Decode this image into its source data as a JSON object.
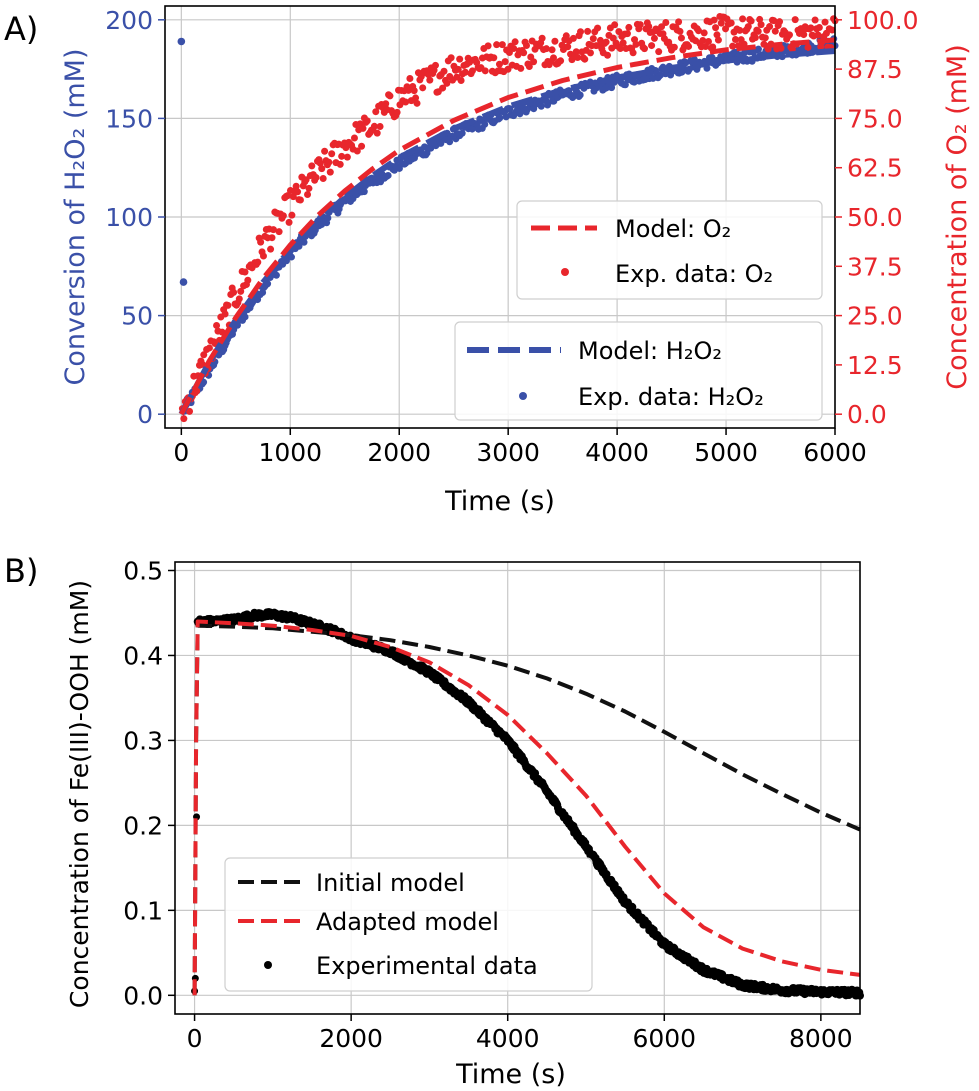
{
  "colors": {
    "h2o2": "#3a50a8",
    "o2": "#e8262c",
    "initial": "#111111",
    "adapted": "#e8262c",
    "experimental": "#000000",
    "grid": "#c8c8c8"
  },
  "panels": {
    "a": {
      "letter": "A)"
    },
    "b": {
      "letter": "B)"
    }
  },
  "chart_data": [
    {
      "type": "scatter",
      "xlabel": "Time (s)",
      "ylabel": "Conversion of H₂O₂ (mM)",
      "ylabel_right": "Concentration of O₂ (mM)",
      "xlim": [
        -150,
        6000
      ],
      "ylim": [
        -7,
        207
      ],
      "ylim_right": [
        -3.5,
        103.5
      ],
      "x_ticks": [
        0,
        1000,
        2000,
        3000,
        4000,
        5000,
        6000
      ],
      "x_tick_labels": [
        "0",
        "1000",
        "2000",
        "3000",
        "4000",
        "5000",
        "6000"
      ],
      "y_ticks": [
        0,
        50,
        100,
        150,
        200
      ],
      "y_tick_labels": [
        "0",
        "50",
        "100",
        "150",
        "200"
      ],
      "y_right_ticks": [
        0,
        12.5,
        25,
        37.5,
        50,
        62.5,
        75,
        87.5,
        100
      ],
      "y_right_tick_labels": [
        "0.0",
        "12.5",
        "25.0",
        "37.5",
        "50.0",
        "62.5",
        "75.0",
        "87.5",
        "100.0"
      ],
      "grid": true,
      "legends": [
        {
          "placement": "center-right",
          "entries": [
            "Model: O₂",
            "Exp. data: O₂"
          ]
        },
        {
          "placement": "lower-right",
          "entries": [
            "Model: H₂O₂",
            "Exp. data: H₂O₂"
          ]
        }
      ],
      "series": [
        {
          "name": "Model: O₂",
          "kind": "line",
          "axis": "right",
          "x": [
            0,
            250,
            500,
            750,
            1000,
            1250,
            1500,
            1750,
            2000,
            2500,
            3000,
            3500,
            4000,
            4500,
            5000,
            5500,
            6000
          ],
          "y": [
            0,
            13.2,
            24.5,
            34.4,
            42.9,
            50.3,
            56.6,
            62.1,
            66.9,
            74.5,
            80.3,
            84.6,
            87.9,
            90.4,
            92.4,
            93.8,
            94.9
          ]
        },
        {
          "name": "Exp. data: O₂",
          "kind": "scatter",
          "axis": "right",
          "x": [
            0,
            250,
            500,
            750,
            1000,
            1250,
            1500,
            1750,
            2000,
            2500,
            3000,
            3500,
            4000,
            4500,
            5000,
            5500,
            6000
          ],
          "y": [
            0,
            15,
            30,
            43,
            53,
            61,
            68,
            73,
            80,
            88,
            91,
            93,
            95,
            96,
            97,
            96,
            97
          ]
        },
        {
          "name": "Model: H₂O₂",
          "kind": "line",
          "axis": "left",
          "x": [
            0,
            250,
            500,
            750,
            1000,
            1250,
            1500,
            1750,
            2000,
            2500,
            3000,
            3500,
            4000,
            4500,
            5000,
            5500,
            6000
          ],
          "y": [
            0,
            25.7,
            47.7,
            66.8,
            83.4,
            97.6,
            110.0,
            120.7,
            130.0,
            144.8,
            156.0,
            164.4,
            170.7,
            175.6,
            179.3,
            182.1,
            184.2
          ]
        },
        {
          "name": "Exp. data: H₂O₂",
          "kind": "scatter",
          "axis": "left",
          "x": [
            0,
            20,
            250,
            500,
            750,
            1000,
            1250,
            1500,
            1750,
            2000,
            2500,
            3000,
            3500,
            4000,
            4500,
            5000,
            5500,
            6000
          ],
          "y": [
            189,
            67,
            22,
            45,
            65,
            82,
            96,
            108,
            118,
            127,
            142,
            153,
            162,
            169,
            175,
            180,
            184,
            188
          ]
        }
      ]
    },
    {
      "type": "line",
      "xlabel": "Time (s)",
      "ylabel": "Concentration of Fe(III)-OOH (mM)",
      "xlim": [
        -250,
        8500
      ],
      "ylim": [
        -0.022,
        0.51
      ],
      "x_ticks": [
        0,
        2000,
        4000,
        6000,
        8000
      ],
      "x_tick_labels": [
        "0",
        "2000",
        "4000",
        "6000",
        "8000"
      ],
      "y_ticks": [
        0,
        0.1,
        0.2,
        0.3,
        0.4,
        0.5
      ],
      "y_tick_labels": [
        "0.0",
        "0.1",
        "0.2",
        "0.3",
        "0.4",
        "0.5"
      ],
      "grid": true,
      "legend": {
        "placement": "lower-left",
        "entries": [
          "Initial model",
          "Adapted model",
          "Experimental data"
        ]
      },
      "series": [
        {
          "name": "Initial model",
          "kind": "line",
          "x": [
            0,
            20,
            40,
            500,
            1000,
            1500,
            2000,
            2500,
            3000,
            3500,
            4000,
            4500,
            5000,
            5500,
            6000,
            6500,
            7000,
            7500,
            8000,
            8500
          ],
          "y": [
            0,
            0.3,
            0.435,
            0.434,
            0.432,
            0.428,
            0.424,
            0.418,
            0.41,
            0.4,
            0.388,
            0.373,
            0.355,
            0.334,
            0.31,
            0.285,
            0.26,
            0.237,
            0.215,
            0.195
          ]
        },
        {
          "name": "Adapted model",
          "kind": "line",
          "x": [
            0,
            20,
            40,
            500,
            1000,
            1500,
            2000,
            2500,
            3000,
            3500,
            4000,
            4500,
            5000,
            5500,
            6000,
            6500,
            7000,
            7500,
            8000,
            8500
          ],
          "y": [
            0,
            0.3,
            0.44,
            0.438,
            0.435,
            0.43,
            0.423,
            0.41,
            0.392,
            0.365,
            0.33,
            0.285,
            0.235,
            0.175,
            0.12,
            0.08,
            0.055,
            0.04,
            0.03,
            0.024
          ]
        },
        {
          "name": "Experimental data",
          "kind": "scatter",
          "x": [
            0,
            10,
            25,
            250,
            500,
            750,
            1000,
            1250,
            1500,
            1750,
            2000,
            2500,
            3000,
            3500,
            4000,
            4500,
            5000,
            5500,
            6000,
            6500,
            7000,
            7500,
            8000,
            8500
          ],
          "y": [
            0.005,
            0.02,
            0.21,
            0.44,
            0.442,
            0.447,
            0.448,
            0.444,
            0.437,
            0.43,
            0.42,
            0.405,
            0.38,
            0.345,
            0.3,
            0.24,
            0.175,
            0.11,
            0.06,
            0.03,
            0.012,
            0.006,
            0.004,
            0.003
          ]
        }
      ]
    }
  ]
}
